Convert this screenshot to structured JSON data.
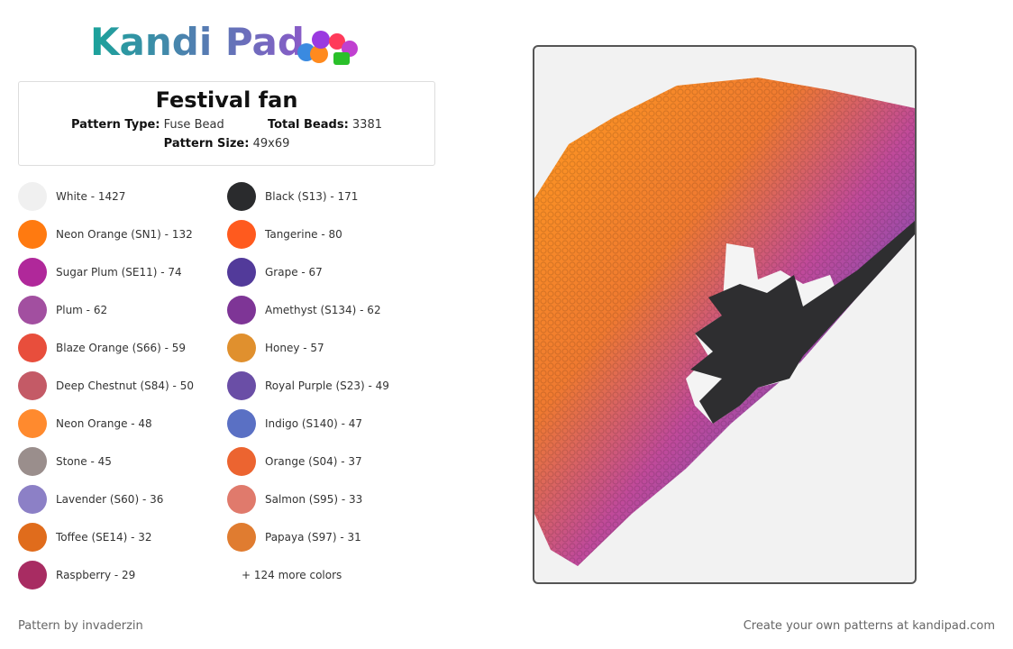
{
  "header": {
    "logo": "Kandi Pad"
  },
  "info": {
    "title": "Festival fan",
    "pattern_type_label": "Pattern Type:",
    "pattern_type": "Fuse Bead",
    "total_beads_label": "Total Beads:",
    "total_beads": "3381",
    "pattern_size_label": "Pattern Size:",
    "pattern_size": "49x69"
  },
  "colors": [
    {
      "label": "White - 1427",
      "swatch": "#f0f0f0"
    },
    {
      "label": "Black (S13) - 171",
      "swatch": "#2a2b2d"
    },
    {
      "label": "Neon Orange (SN1) - 132",
      "swatch": "#ff7a10"
    },
    {
      "label": "Tangerine - 80",
      "swatch": "#ff5a1e"
    },
    {
      "label": "Sugar Plum (SE11) - 74",
      "swatch": "#b0289a"
    },
    {
      "label": "Grape - 67",
      "swatch": "#523a9a"
    },
    {
      "label": "Plum - 62",
      "swatch": "#a24fa0"
    },
    {
      "label": "Amethyst (S134) - 62",
      "swatch": "#7e3596"
    },
    {
      "label": "Blaze Orange (S66) - 59",
      "swatch": "#e84e3c"
    },
    {
      "label": "Honey - 57",
      "swatch": "#e0902e"
    },
    {
      "label": "Deep Chestnut (S84) - 50",
      "swatch": "#c45a66"
    },
    {
      "label": "Royal Purple (S23) - 49",
      "swatch": "#6a4ea6"
    },
    {
      "label": "Neon Orange - 48",
      "swatch": "#ff8a2e"
    },
    {
      "label": "Indigo (S140) - 47",
      "swatch": "#5a70c4"
    },
    {
      "label": "Stone - 45",
      "swatch": "#9a8e8c"
    },
    {
      "label": "Orange (S04) - 37",
      "swatch": "#ec6430"
    },
    {
      "label": "Lavender (S60) - 36",
      "swatch": "#8c80c6"
    },
    {
      "label": "Salmon (S95) - 33",
      "swatch": "#e07a6c"
    },
    {
      "label": "Toffee (SE14) - 32",
      "swatch": "#e06c1c"
    },
    {
      "label": "Papaya (S97) - 31",
      "swatch": "#e07c30"
    },
    {
      "label": "Raspberry - 29",
      "swatch": "#a82c62"
    }
  ],
  "more_colors": "+ 124 more colors",
  "footer": {
    "credit": "Pattern by invaderzin",
    "promo": "Create your own patterns at kandipad.com"
  }
}
